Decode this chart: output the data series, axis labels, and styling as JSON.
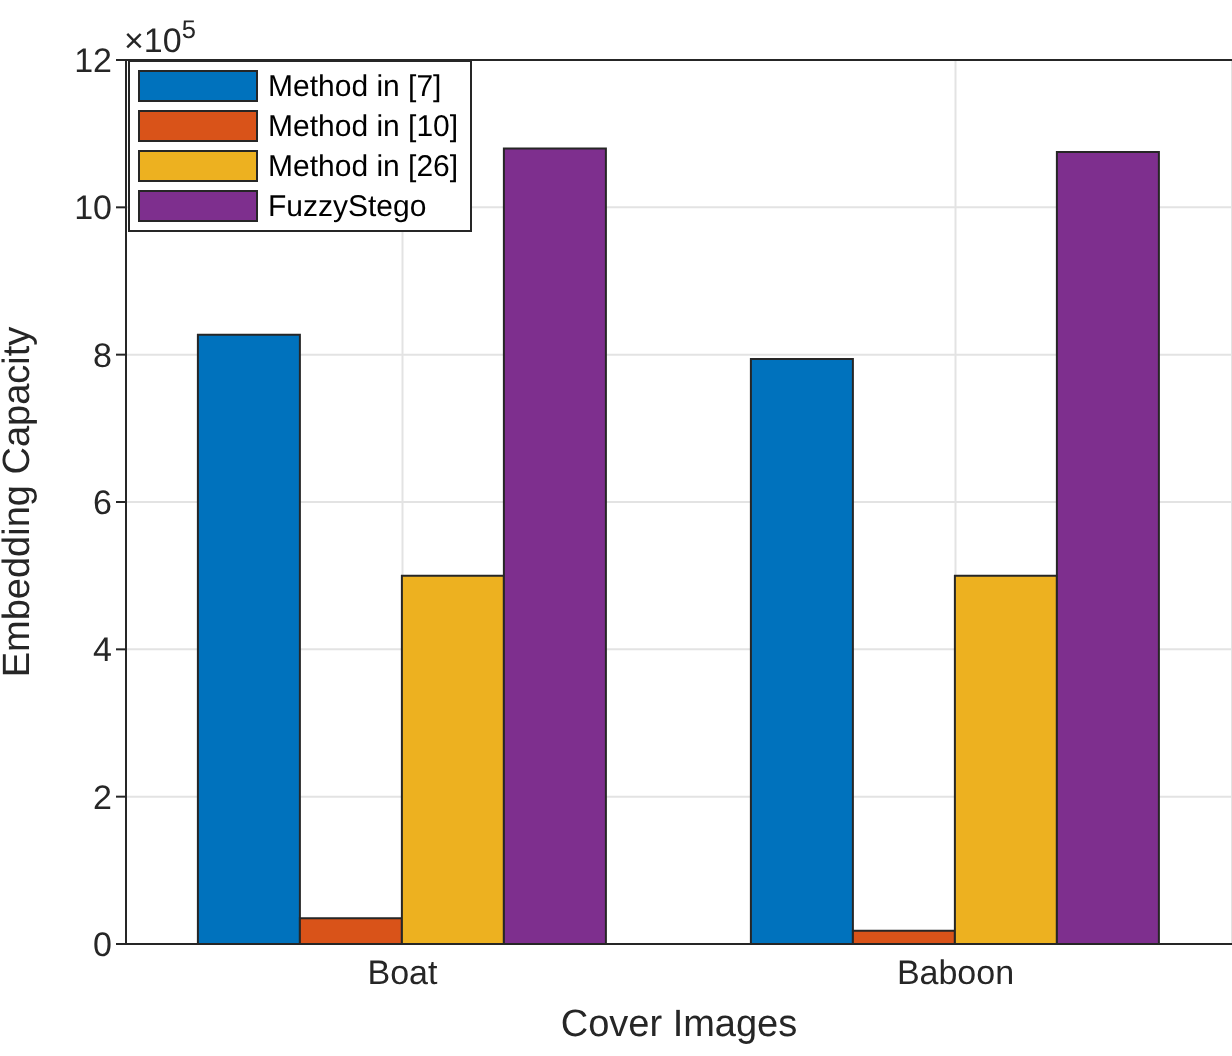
{
  "chart_data": {
    "type": "bar",
    "xlabel": "Cover Images",
    "ylabel": "Embedding Capacity",
    "annotations": [
      "×10$^{5}$"
    ],
    "categories": [
      "Boat",
      "Baboon"
    ],
    "series": [
      {
        "name": "Method in [7]",
        "color": "#0072bd",
        "values": [
          8.27,
          7.94
        ]
      },
      {
        "name": "Method in [10]",
        "color": "#d95319",
        "values": [
          0.35,
          0.18
        ]
      },
      {
        "name": "Method in [26]",
        "color": "#edb120",
        "values": [
          5.0,
          5.0
        ]
      },
      {
        "name": "FuzzyStego",
        "color": "#7e2f8e",
        "values": [
          10.8,
          10.75
        ]
      }
    ],
    "ylim": [
      0,
      12
    ],
    "yticks": [
      0,
      2,
      4,
      6,
      8,
      10,
      12
    ],
    "grid": true,
    "legend": "top left"
  }
}
